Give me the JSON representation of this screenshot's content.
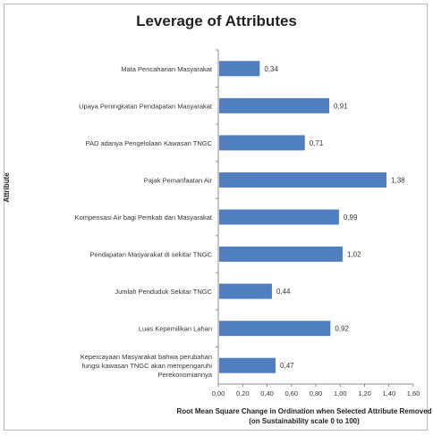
{
  "chart_data": {
    "type": "bar",
    "orientation": "horizontal",
    "title": "Leverage of Attributes",
    "ylabel": "Attribute",
    "xlabel": "Root Mean Square Change in Ordination when Selected Attribute Removed (on Sustainability scale 0 to 100)",
    "xlim": [
      0,
      1.6
    ],
    "xticks": [
      "0,00",
      "0,20",
      "0,40",
      "0,60",
      "0,80",
      "1,00",
      "1,20",
      "1,40",
      "1,60"
    ],
    "categories": [
      "Mata Pencaharian Masyarakat",
      "Upaya Peningkatan Pendapatan Masyarakat",
      "Pengelolaan Kawasan TNGC",
      "Pajak Pemanfaatan Air",
      "Kompensasi Air bagi Pemkab dan Masyarakat",
      "Pendapatan Masyarakat di sekitar TNGC",
      "Jumlah Penduduk Sekitar TNGC",
      "Luas Kepemilikan Lahan",
      "Kepercayaan Masyarakat bahwa perubahan fungsi kawasan TNGC akan mempengaruhi Perekonomiannya"
    ],
    "category_display": [
      [
        "Mata Pencaharian Masyarakat"
      ],
      [
        "Upaya Peningkatan Pendapatan Masyarakat"
      ],
      [
        "PAD adanya Pengelolaan Kawasan TNGC"
      ],
      [
        "Pajak Pemanfaatan Air"
      ],
      [
        "Kompensasi Air bagi Pemkab dan Masyarakat"
      ],
      [
        "Pendapatan Masyarakat di sekitar TNGC"
      ],
      [
        "Jumlah Penduduk Sekitar TNGC"
      ],
      [
        "Luas Kepemilikan Lahan"
      ],
      [
        "Kepercayaan Masyarakat bahwa perubahan",
        "fungsi kawasan TNGC akan mempengaruhi",
        "Perekonomiannya"
      ]
    ],
    "values": [
      0.34,
      0.91,
      0.71,
      1.38,
      0.99,
      1.02,
      0.44,
      0.92,
      0.47
    ],
    "value_labels": [
      "0,34",
      "0,91",
      "0,71",
      "1,38",
      "0,99",
      "1,02",
      "0,44",
      "0,92",
      "0,47"
    ],
    "bar_color": "#4f7fc1",
    "grid": false,
    "legend": "none"
  }
}
